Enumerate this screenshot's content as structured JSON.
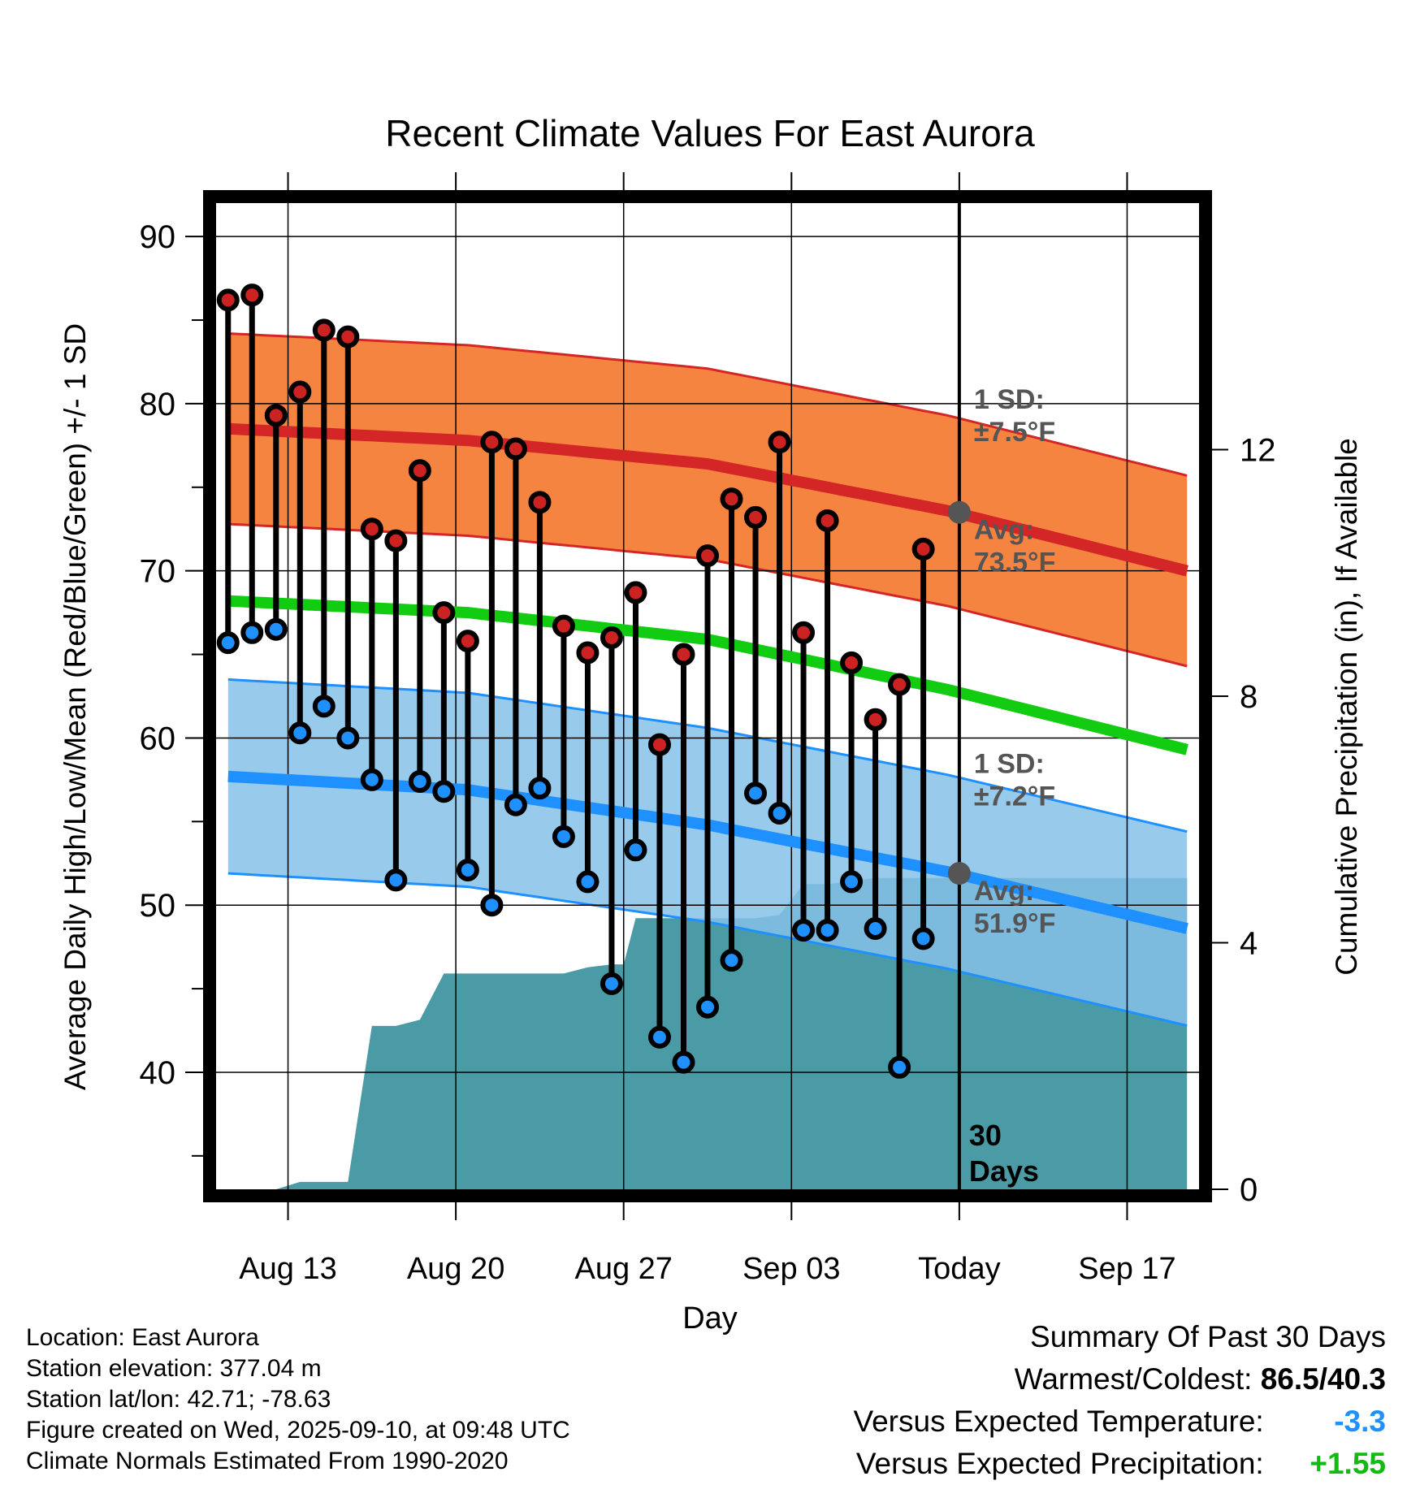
{
  "chart_data": {
    "type": "line",
    "title": "Recent Climate Values For East Aurora",
    "xlabel": "Day",
    "ylabel": "Average Daily High/Low/Mean (Red/Blue/Green) +/- 1 SD",
    "y2label": "Cumulative Precipitation (in), If Available",
    "ylim": [
      33,
      92
    ],
    "y2lim": [
      0,
      16
    ],
    "yticks": [
      40,
      50,
      60,
      70,
      80,
      90
    ],
    "y2ticks": [
      0,
      4,
      8,
      12
    ],
    "xlim": [
      -0.5,
      40.5
    ],
    "xticks": [
      {
        "x": 2.5,
        "label": "Aug 13"
      },
      {
        "x": 9.5,
        "label": "Aug 20"
      },
      {
        "x": 16.5,
        "label": "Aug 27"
      },
      {
        "x": 23.5,
        "label": "Sep 03"
      },
      {
        "x": 30.5,
        "label": "Today"
      },
      {
        "x": 37.5,
        "label": "Sep 17"
      }
    ],
    "today_x": 30.5,
    "days_label": "30\nDays",
    "highs": [
      86.2,
      86.5,
      79.3,
      80.7,
      84.4,
      84.0,
      72.5,
      71.8,
      76.0,
      67.5,
      65.8,
      77.7,
      77.3,
      74.1,
      66.7,
      65.1,
      66.0,
      68.7,
      59.6,
      65.0,
      70.9,
      74.3,
      73.2,
      77.7,
      66.3,
      73.0,
      64.5,
      61.1,
      63.2,
      71.3
    ],
    "lows": [
      65.7,
      66.3,
      66.5,
      60.3,
      61.9,
      60.0,
      57.5,
      51.5,
      57.4,
      56.8,
      52.1,
      50.0,
      56.0,
      57.0,
      54.1,
      51.4,
      45.3,
      53.3,
      42.1,
      40.6,
      43.9,
      46.7,
      56.7,
      55.5,
      48.5,
      48.5,
      51.4,
      48.6,
      40.3,
      48.0
    ],
    "normal_high": {
      "x": [
        0,
        10,
        20,
        30,
        40
      ],
      "values": [
        78.5,
        77.8,
        76.4,
        73.6,
        70.0
      ]
    },
    "normal_high_sd": 5.7,
    "normal_mean": {
      "x": [
        0,
        10,
        20,
        30,
        40
      ],
      "values": [
        68.2,
        67.5,
        65.9,
        62.9,
        59.3
      ]
    },
    "normal_low": {
      "x": [
        0,
        10,
        20,
        30,
        40
      ],
      "values": [
        57.7,
        56.9,
        54.8,
        52.0,
        48.6
      ]
    },
    "normal_low_sd": 5.8,
    "precip_cumulative": {
      "x": [
        2,
        3,
        5,
        6,
        7,
        8,
        9,
        10,
        14,
        15,
        16,
        16.5,
        17,
        18,
        22,
        23,
        24,
        25,
        26,
        27,
        28,
        30,
        40
      ],
      "values": [
        0,
        0.12,
        0.12,
        2.65,
        2.65,
        2.75,
        3.5,
        3.5,
        3.5,
        3.6,
        3.65,
        3.65,
        4.4,
        4.4,
        4.4,
        4.45,
        4.95,
        4.95,
        5.0,
        5.05,
        5.05,
        5.05,
        5.05
      ]
    },
    "annotations": [
      {
        "label": "1 SD:",
        "sub": "±7.5°F",
        "series": "high"
      },
      {
        "label": "Avg:",
        "sub": "73.5°F",
        "series": "high",
        "value": 73.5
      },
      {
        "label": "1 SD:",
        "sub": "±7.2°F",
        "series": "low"
      },
      {
        "label": "Avg:",
        "sub": "51.9°F",
        "series": "low",
        "value": 51.9
      }
    ]
  },
  "colors": {
    "high_band": "#f47a30",
    "high_line": "#d42626",
    "high_dot": "#cc2222",
    "low_band": "#85c1e8",
    "low_line": "#1e90ff",
    "low_dot": "#1e90ff",
    "mean_line": "#11cc11",
    "precip": "#4a9ba5",
    "annotation": "#555555",
    "pos": "#11bb11",
    "neg": "#1e90ff"
  },
  "meta": {
    "location": "Location: East Aurora",
    "elevation": "Station elevation: 377.04 m",
    "latlon": "Station lat/lon: 42.71; -78.63",
    "created": "Figure created on Wed, 2025-09-10, at 09:48 UTC",
    "normals": "Climate Normals Estimated From 1990-2020"
  },
  "summary": {
    "title": "Summary Of Past 30 Days",
    "warm_cold_label": "Warmest/Coldest:",
    "warm_cold_value": "86.5/40.3",
    "temp_label": "Versus Expected Temperature:",
    "temp_value": "-3.3",
    "precip_label": "Versus Expected Precipitation:",
    "precip_value": "+1.55"
  }
}
